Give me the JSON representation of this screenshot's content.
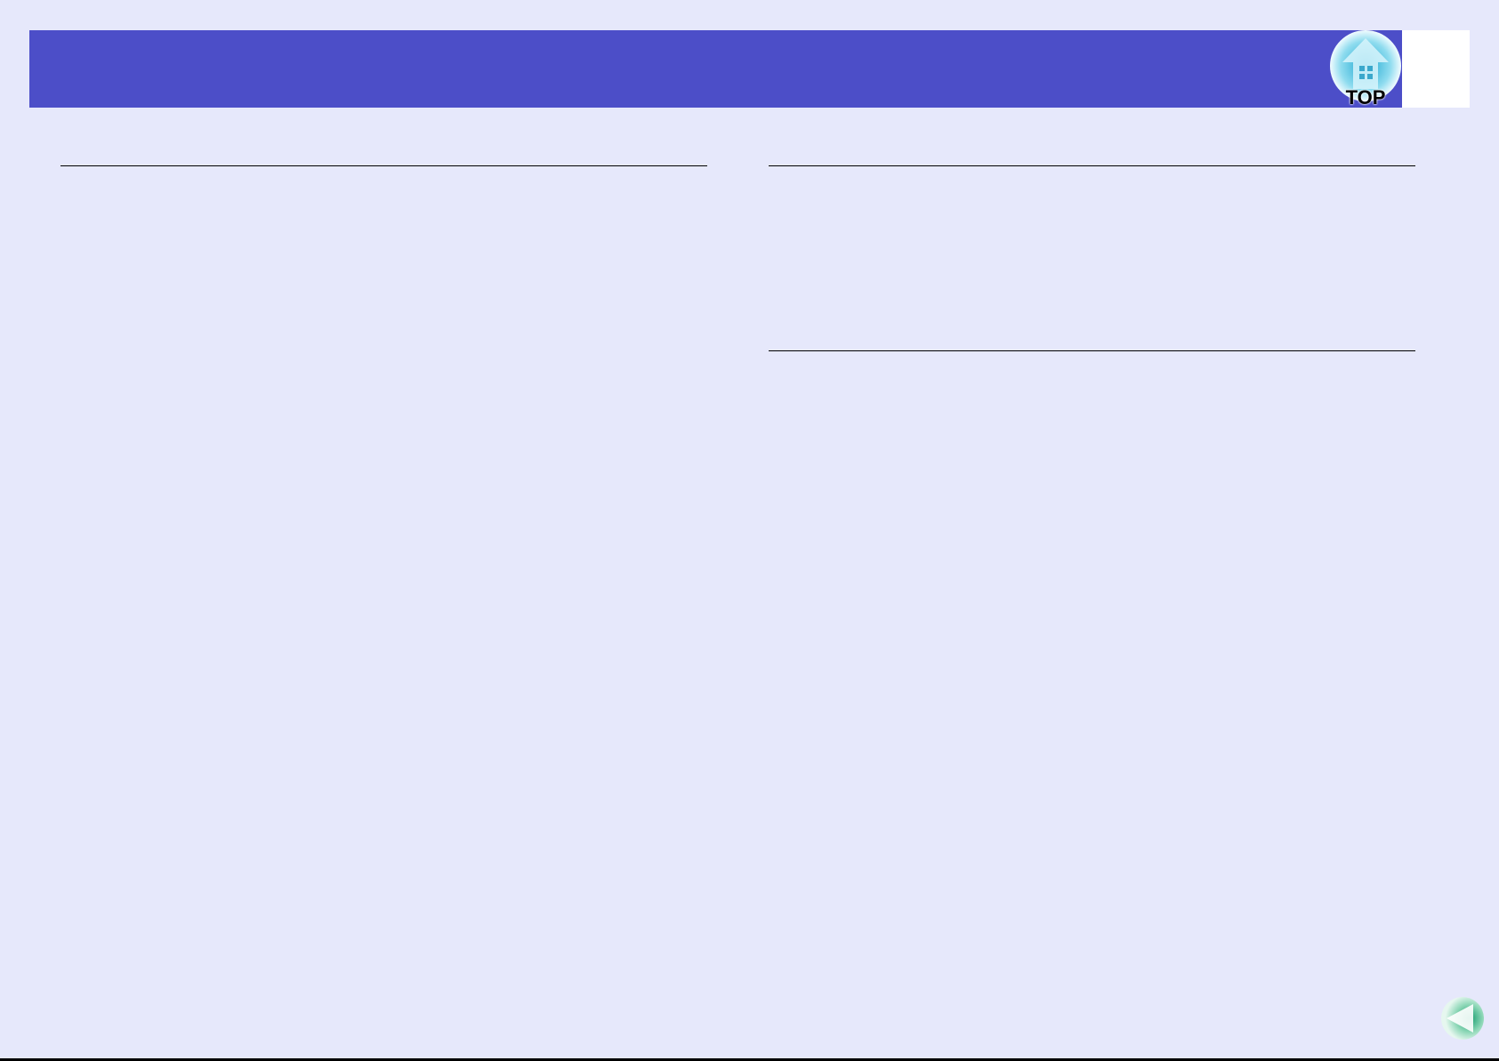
{
  "header": {
    "accent_color": "#4c4ec8",
    "top_button": {
      "icon": "home-icon",
      "label": "TOP"
    }
  },
  "footer": {
    "back_button": {
      "icon": "triangle-left-icon"
    }
  }
}
